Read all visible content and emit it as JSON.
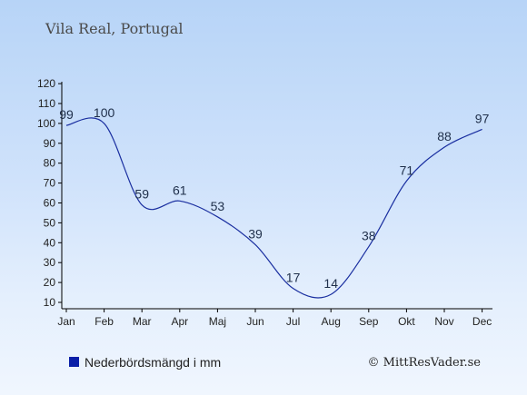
{
  "title": "Vila Real, Portugal",
  "legend_label": "Nederbördsmängd i mm",
  "credit": "© MittResVader.se",
  "colors": {
    "line": "#1a2fa0",
    "legend_marker": "#0a1fa8",
    "axis": "#000000"
  },
  "chart_data": {
    "type": "line",
    "categories": [
      "Jan",
      "Feb",
      "Mar",
      "Apr",
      "Maj",
      "Jun",
      "Jul",
      "Aug",
      "Sep",
      "Okt",
      "Nov",
      "Dec"
    ],
    "series": [
      {
        "name": "Nederbördsmängd i mm",
        "values": [
          99,
          100,
          59,
          61,
          53,
          39,
          17,
          14,
          38,
          71,
          88,
          97
        ]
      }
    ],
    "yticks": [
      10,
      20,
      30,
      40,
      50,
      60,
      70,
      80,
      90,
      100,
      110,
      120
    ],
    "ylim": [
      5,
      120
    ],
    "grid": false,
    "legend": "bottom-left"
  }
}
